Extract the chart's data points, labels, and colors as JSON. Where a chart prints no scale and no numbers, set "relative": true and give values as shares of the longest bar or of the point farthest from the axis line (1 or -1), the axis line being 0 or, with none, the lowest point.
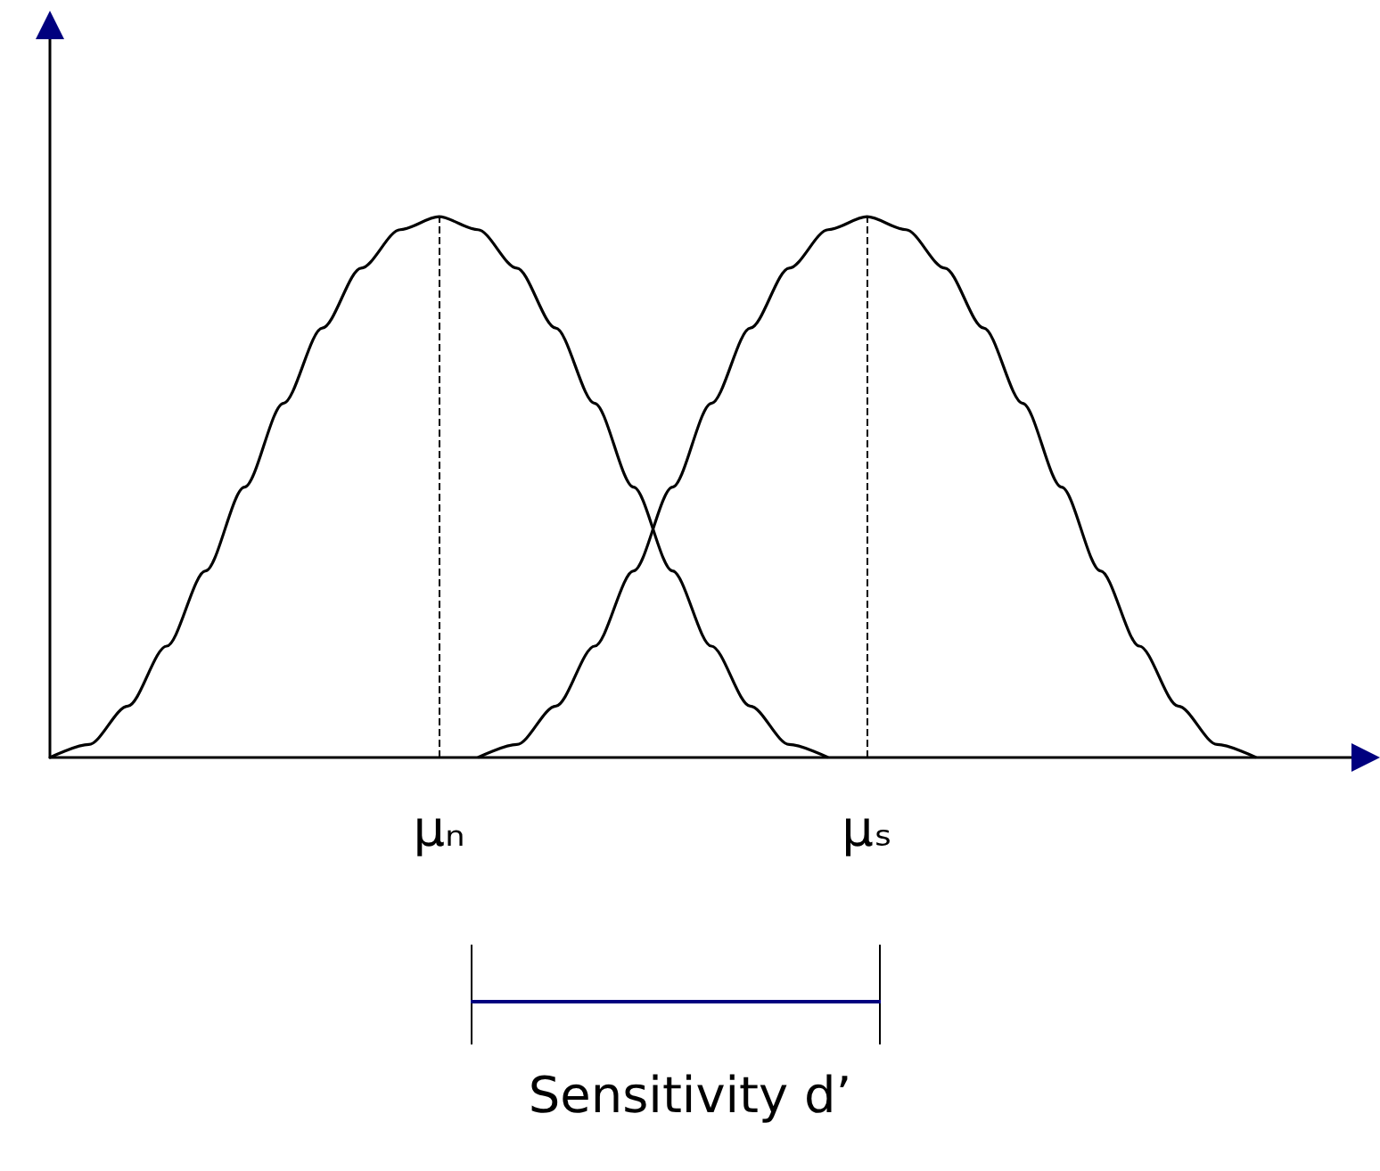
{
  "chart_data": {
    "type": "line",
    "relative": true,
    "categories": [
      null,
      null,
      null,
      null,
      null,
      null,
      null,
      null,
      null,
      null,
      "μₙ",
      null,
      null,
      null,
      null,
      null,
      null,
      null,
      null,
      null,
      null,
      "μₛ",
      null,
      null,
      null,
      null,
      null,
      null,
      null,
      null,
      null,
      null,
      null,
      null,
      null
    ],
    "series": [
      {
        "color": "#000000",
        "values": [
          0,
          0.024,
          0.095,
          0.206,
          0.345,
          0.5,
          0.655,
          0.794,
          0.905,
          0.976,
          1,
          0.976,
          0.905,
          0.794,
          0.655,
          0.5,
          0.345,
          0.206,
          0.095,
          0.024,
          0,
          null,
          null,
          null,
          null,
          null,
          null,
          null,
          null,
          null,
          null,
          null,
          null,
          null,
          null
        ]
      },
      {
        "color": "#000000",
        "values": [
          null,
          null,
          null,
          null,
          null,
          null,
          null,
          null,
          null,
          null,
          null,
          0,
          0.024,
          0.095,
          0.206,
          0.345,
          0.5,
          0.655,
          0.794,
          0.905,
          0.976,
          1,
          0.976,
          0.905,
          0.794,
          0.655,
          0.5,
          0.345,
          0.206,
          0.095,
          0.024,
          0,
          null,
          null,
          null
        ]
      }
    ],
    "ref_lines": [
      {
        "axis": "x",
        "value": "μₙ",
        "line_style": "dashed"
      },
      {
        "axis": "x",
        "value": "μₛ",
        "line_style": "dashed"
      }
    ],
    "annotations": [
      "Sensitivity d’"
    ],
    "grid": false,
    "marker": "none",
    "line_style": "solid"
  }
}
